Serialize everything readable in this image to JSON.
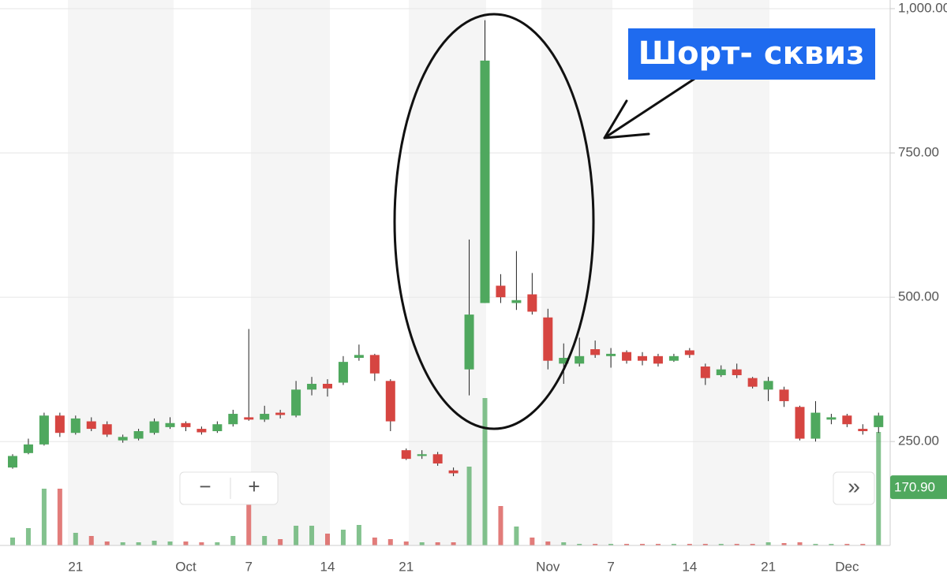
{
  "chart_data": {
    "type": "candlestick",
    "categories": [
      null,
      null,
      null,
      null,
      "21",
      null,
      null,
      null,
      null,
      null,
      null,
      "Oct",
      null,
      null,
      null,
      "7",
      null,
      null,
      null,
      null,
      "14",
      null,
      null,
      null,
      null,
      "21",
      null,
      null,
      null,
      null,
      null,
      null,
      null,
      null,
      "Nov",
      null,
      null,
      null,
      "7",
      null,
      null,
      null,
      null,
      "14",
      null,
      null,
      null,
      null,
      "21",
      null,
      null,
      null,
      null,
      "Dec",
      null,
      null
    ],
    "open": [
      205,
      230,
      245,
      295,
      265,
      285,
      280,
      252,
      255,
      265,
      275,
      282,
      272,
      268,
      280,
      292,
      288,
      300,
      295,
      340,
      350,
      352,
      395,
      400,
      355,
      235,
      225,
      228,
      200,
      375,
      490,
      520,
      490,
      505,
      465,
      385,
      385,
      410,
      398,
      405,
      398,
      398,
      390,
      408,
      380,
      365,
      375,
      360,
      340,
      340,
      310,
      255,
      288,
      295,
      272,
      275
    ],
    "high": [
      228,
      255,
      300,
      300,
      295,
      292,
      285,
      262,
      272,
      290,
      292,
      285,
      276,
      285,
      305,
      445,
      312,
      305,
      355,
      362,
      358,
      398,
      418,
      402,
      358,
      238,
      235,
      232,
      205,
      600,
      980,
      540,
      580,
      542,
      480,
      420,
      430,
      425,
      412,
      408,
      405,
      402,
      402,
      412,
      385,
      382,
      385,
      362,
      362,
      345,
      312,
      320,
      298,
      298,
      280,
      300
    ],
    "low": [
      203,
      228,
      243,
      258,
      262,
      268,
      258,
      248,
      252,
      262,
      272,
      268,
      262,
      265,
      276,
      286,
      284,
      290,
      292,
      330,
      328,
      348,
      390,
      355,
      268,
      218,
      220,
      208,
      190,
      330,
      490,
      490,
      478,
      470,
      375,
      350,
      380,
      395,
      378,
      385,
      382,
      380,
      388,
      395,
      348,
      362,
      360,
      342,
      320,
      310,
      252,
      250,
      280,
      275,
      262,
      265
    ],
    "close": [
      225,
      245,
      295,
      265,
      290,
      272,
      262,
      258,
      268,
      285,
      282,
      275,
      266,
      280,
      298,
      288,
      298,
      296,
      340,
      350,
      342,
      388,
      400,
      368,
      285,
      220,
      228,
      212,
      195,
      470,
      910,
      500,
      495,
      475,
      390,
      395,
      398,
      400,
      402,
      390,
      390,
      385,
      398,
      400,
      360,
      375,
      365,
      345,
      355,
      320,
      255,
      300,
      292,
      280,
      268,
      295
    ],
    "volume": [
      10,
      22,
      72,
      72,
      16,
      12,
      5,
      4,
      4,
      6,
      5,
      5,
      4,
      4,
      12,
      52,
      12,
      8,
      25,
      25,
      15,
      20,
      26,
      10,
      8,
      5,
      4,
      4,
      4,
      100,
      187,
      50,
      24,
      10,
      5,
      4,
      2,
      2,
      2,
      2,
      2,
      2,
      2,
      2,
      2,
      2,
      2,
      2,
      4,
      3,
      4,
      2,
      2,
      2,
      2,
      144
    ],
    "up_color": "#4fa85e",
    "down_color": "#d64541",
    "ylim": [
      70,
      1015
    ],
    "yticks": [
      {
        "value": 1000,
        "label": "1,000.00"
      },
      {
        "value": 750,
        "label": "750.00"
      },
      {
        "value": 500,
        "label": "500.00"
      },
      {
        "value": 250,
        "label": "250.00"
      }
    ],
    "grid": true,
    "last_price": {
      "value": 170.9,
      "label": "170.90"
    },
    "annotation": "Шорт- сквиз"
  },
  "controls": {
    "zoom_out": "−",
    "zoom_in": "+",
    "scroll": "»"
  }
}
